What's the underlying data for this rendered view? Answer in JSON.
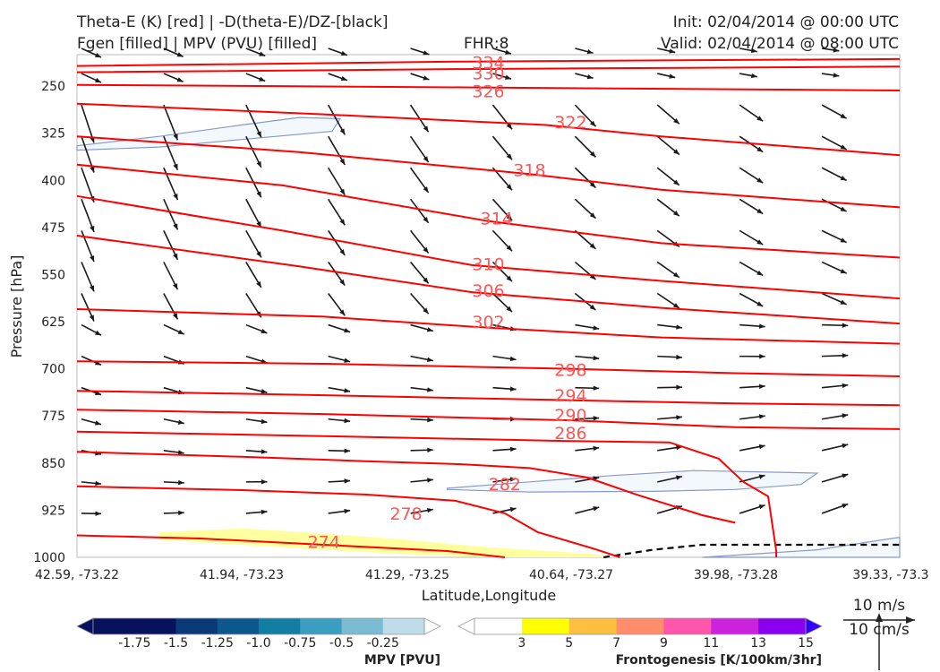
{
  "header": {
    "title_left_1": "Theta-E (K) [red] | -D(theta-E)/DZ-[black]",
    "title_left_2": "Fgen [filled] | MPV (PVU) [filled]",
    "fhr": "FHR:8",
    "init": "Init: 02/04/2014 @ 00:00 UTC",
    "valid": "Valid: 02/04/2014 @ 08:00 UTC"
  },
  "chart_data": {
    "type": "cross-section",
    "xlabel": "Latitude,Longitude",
    "ylabel": "Pressure [hPa]",
    "x_ticks": [
      "42.59, -73.22",
      "41.94, -73.23",
      "41.29, -73.25",
      "40.64, -73.27",
      "39.98, -73.28",
      "39.33, -73.3"
    ],
    "y_ticks": [
      250,
      325,
      400,
      475,
      550,
      625,
      700,
      775,
      850,
      925,
      1000
    ],
    "ylim": [
      1000,
      200
    ],
    "theta_e_color": "#ff0000",
    "theta_e_contours": [
      {
        "value": 334,
        "label": "334",
        "points": [
          [
            0.0,
            218
          ],
          [
            0.47,
            211
          ],
          [
            1.0,
            207
          ]
        ]
      },
      {
        "value": 330,
        "label": "330",
        "points": [
          [
            0.0,
            228
          ],
          [
            0.47,
            223
          ],
          [
            1.0,
            219
          ]
        ]
      },
      {
        "value": 326,
        "label": "326",
        "points": [
          [
            0.0,
            248
          ],
          [
            0.47,
            252
          ],
          [
            1.0,
            257
          ]
        ]
      },
      {
        "value": 322,
        "label": "322",
        "points": [
          [
            0.0,
            278
          ],
          [
            0.3,
            295
          ],
          [
            0.57,
            312
          ],
          [
            0.71,
            330
          ],
          [
            1.0,
            360
          ]
        ]
      },
      {
        "value": 318,
        "label": "318",
        "points": [
          [
            0.0,
            330
          ],
          [
            0.27,
            355
          ],
          [
            0.55,
            390
          ],
          [
            0.71,
            415
          ],
          [
            1.0,
            443
          ]
        ]
      },
      {
        "value": 314,
        "label": "314",
        "points": [
          [
            0.0,
            375
          ],
          [
            0.25,
            408
          ],
          [
            0.5,
            465
          ],
          [
            0.71,
            500
          ],
          [
            1.0,
            523
          ]
        ]
      },
      {
        "value": 310,
        "label": "310",
        "points": [
          [
            0.0,
            425
          ],
          [
            0.25,
            480
          ],
          [
            0.48,
            535
          ],
          [
            0.71,
            560
          ],
          [
            1.0,
            588
          ]
        ]
      },
      {
        "value": 306,
        "label": "306",
        "points": [
          [
            0.0,
            488
          ],
          [
            0.27,
            537
          ],
          [
            0.48,
            578
          ],
          [
            0.71,
            603
          ],
          [
            1.0,
            628
          ]
        ]
      },
      {
        "value": 302,
        "label": "302",
        "points": [
          [
            0.0,
            605
          ],
          [
            0.3,
            617
          ],
          [
            0.48,
            633
          ],
          [
            0.71,
            650
          ],
          [
            1.0,
            660
          ]
        ]
      },
      {
        "value": 298,
        "label": "298",
        "points": [
          [
            0.0,
            688
          ],
          [
            0.3,
            692
          ],
          [
            0.6,
            700
          ],
          [
            0.8,
            707
          ],
          [
            1.0,
            712
          ]
        ]
      },
      {
        "value": 294,
        "label": "294",
        "points": [
          [
            0.0,
            735
          ],
          [
            0.3,
            742
          ],
          [
            0.6,
            750
          ],
          [
            0.8,
            755
          ],
          [
            1.0,
            758
          ]
        ]
      },
      {
        "value": 290,
        "label": "290",
        "points": [
          [
            0.0,
            765
          ],
          [
            0.3,
            772
          ],
          [
            0.6,
            782
          ],
          [
            0.8,
            793
          ],
          [
            1.0,
            796
          ]
        ]
      },
      {
        "value": 286,
        "label": "286",
        "points": [
          [
            0.0,
            800
          ],
          [
            0.3,
            807
          ],
          [
            0.6,
            815
          ],
          [
            0.72,
            817
          ],
          [
            0.78,
            843
          ],
          [
            0.81,
            880
          ],
          [
            0.84,
            903
          ],
          [
            0.85,
            990
          ],
          [
            0.85,
            1000
          ]
        ]
      },
      {
        "value": 282,
        "label": "282",
        "points": [
          [
            0.0,
            832
          ],
          [
            0.2,
            840
          ],
          [
            0.35,
            847
          ],
          [
            0.47,
            852
          ],
          [
            0.55,
            858
          ],
          [
            0.62,
            873
          ],
          [
            0.68,
            900
          ],
          [
            0.76,
            933
          ],
          [
            0.8,
            945
          ]
        ]
      },
      {
        "value": 278,
        "label": "278",
        "points": [
          [
            0.0,
            887
          ],
          [
            0.2,
            893
          ],
          [
            0.35,
            900
          ],
          [
            0.46,
            910
          ],
          [
            0.52,
            930
          ],
          [
            0.56,
            960
          ],
          [
            0.63,
            987
          ],
          [
            0.66,
            1000
          ]
        ]
      },
      {
        "value": 274,
        "label": "274",
        "points": [
          [
            0.0,
            965
          ],
          [
            0.15,
            970
          ],
          [
            0.3,
            980
          ],
          [
            0.45,
            990
          ],
          [
            0.52,
            1000
          ]
        ]
      }
    ],
    "theta_e_labels": [
      {
        "text": "334",
        "x": 0.5,
        "y": 212
      },
      {
        "text": "330",
        "x": 0.5,
        "y": 229
      },
      {
        "text": "326",
        "x": 0.5,
        "y": 258
      },
      {
        "text": "322",
        "x": 0.6,
        "y": 307
      },
      {
        "text": "318",
        "x": 0.55,
        "y": 383
      },
      {
        "text": "314",
        "x": 0.51,
        "y": 460
      },
      {
        "text": "310",
        "x": 0.5,
        "y": 533
      },
      {
        "text": "306",
        "x": 0.5,
        "y": 575
      },
      {
        "text": "302",
        "x": 0.5,
        "y": 625
      },
      {
        "text": "298",
        "x": 0.6,
        "y": 701
      },
      {
        "text": "294",
        "x": 0.6,
        "y": 742
      },
      {
        "text": "290",
        "x": 0.6,
        "y": 773
      },
      {
        "text": "286",
        "x": 0.6,
        "y": 802
      },
      {
        "text": "282",
        "x": 0.52,
        "y": 883
      },
      {
        "text": "278",
        "x": 0.4,
        "y": 930
      },
      {
        "text": "274",
        "x": 0.3,
        "y": 975
      }
    ],
    "mpv_regions": [
      {
        "color": "#f2f8fb",
        "edge": "#8899cc",
        "points": [
          [
            0.0,
            345
          ],
          [
            0.1,
            330
          ],
          [
            0.2,
            312
          ],
          [
            0.27,
            300
          ],
          [
            0.32,
            302
          ],
          [
            0.31,
            322
          ],
          [
            0.2,
            335
          ],
          [
            0.1,
            347
          ],
          [
            0.0,
            352
          ]
        ]
      },
      {
        "color": "#f2f8fb",
        "edge": "#8899cc",
        "points": [
          [
            0.45,
            890
          ],
          [
            0.55,
            880
          ],
          [
            0.65,
            870
          ],
          [
            0.75,
            862
          ],
          [
            0.9,
            866
          ],
          [
            0.88,
            884
          ],
          [
            0.8,
            892
          ],
          [
            0.7,
            895
          ],
          [
            0.55,
            896
          ],
          [
            0.45,
            892
          ]
        ]
      },
      {
        "color": "#f2f8fb",
        "edge": "#8899cc",
        "points": [
          [
            0.76,
            1000
          ],
          [
            0.9,
            988
          ],
          [
            1.0,
            968
          ],
          [
            1.0,
            1000
          ]
        ]
      }
    ],
    "fgen_regions": [
      {
        "color": "#ffffa0",
        "points": [
          [
            0.1,
            960
          ],
          [
            0.2,
            954
          ],
          [
            0.3,
            962
          ],
          [
            0.4,
            972
          ],
          [
            0.5,
            984
          ],
          [
            0.62,
            994
          ],
          [
            0.66,
            1000
          ],
          [
            0.5,
            1000
          ],
          [
            0.4,
            995
          ],
          [
            0.3,
            988
          ],
          [
            0.2,
            980
          ],
          [
            0.1,
            972
          ]
        ]
      }
    ],
    "dashed_line": {
      "color": "#000000",
      "points": [
        [
          0.64,
          1000
        ],
        [
          0.7,
          988
        ],
        [
          0.76,
          980
        ],
        [
          1.0,
          980
        ]
      ]
    },
    "wind_columns_x": [
      0.0,
      0.1,
      0.2,
      0.3,
      0.4,
      0.5,
      0.6,
      0.7,
      0.8,
      0.9
    ],
    "wind_levels": [
      210,
      250,
      300,
      350,
      400,
      450,
      500,
      550,
      600,
      650,
      700,
      750,
      800,
      850,
      900,
      950
    ],
    "mpv_colorbar": {
      "colors": [
        "#08115e",
        "#0a3978",
        "#0b578e",
        "#127ea4",
        "#3a9ec0",
        "#7bbbd4",
        "#bfdce9",
        "#ffffff"
      ],
      "ticks": [
        "-1.75",
        "-1.5",
        "-1.25",
        "-1.0",
        "-0.75",
        "-0.5",
        "-0.25"
      ],
      "label": "MPV [PVU]"
    },
    "fgen_colorbar": {
      "colors": [
        "#ffffff",
        "#ffff00",
        "#ffc040",
        "#ff8c6a",
        "#ff55aa",
        "#cc22dd",
        "#8800ee",
        "#3300ff"
      ],
      "ticks": [
        "3",
        "5",
        "7",
        "9",
        "11",
        "13",
        "15"
      ],
      "label": "Frontogenesis [K/100km/3hr]"
    },
    "wind_reference": {
      "top": "10 m/s",
      "bottom": "10 cm/s"
    }
  }
}
